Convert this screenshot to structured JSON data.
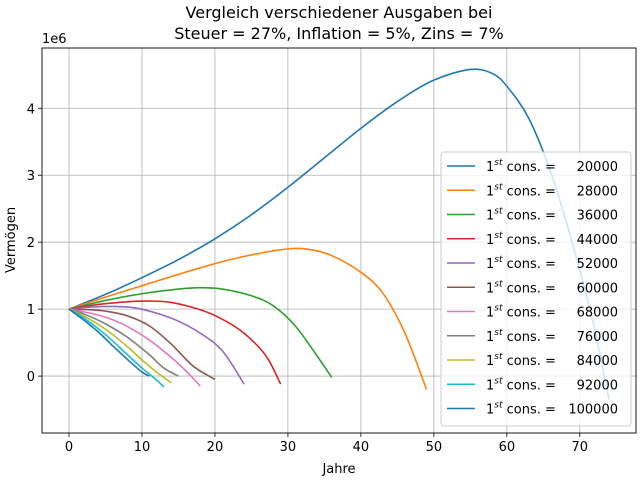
{
  "chart_data": {
    "type": "line",
    "title_line1": "Vergleich verschiedener Ausgaben bei",
    "title_line2": "Steuer = 27%, Inflation = 5%, Zins = 7%",
    "xlabel": "Jahre",
    "ylabel": "Vermögen",
    "y_offset_label": "1e6",
    "xlim": [
      -3.7,
      77.7
    ],
    "ylim": [
      -0.85,
      4.9
    ],
    "y_scale": 1000000,
    "x_ticks": [
      0,
      10,
      20,
      30,
      40,
      50,
      60,
      70
    ],
    "y_ticks": [
      0,
      1,
      2,
      3,
      4
    ],
    "grid": true,
    "legend_position": "right",
    "legend_prefix": "1",
    "legend_sup": "st",
    "legend_suffix": " cons. =",
    "series": [
      {
        "name": "20000",
        "color": "#1f77b4",
        "points": [
          [
            0,
            1.0
          ],
          [
            5,
            1.22
          ],
          [
            10,
            1.47
          ],
          [
            15,
            1.74
          ],
          [
            20,
            2.05
          ],
          [
            25,
            2.41
          ],
          [
            30,
            2.82
          ],
          [
            35,
            3.26
          ],
          [
            40,
            3.7
          ],
          [
            45,
            4.1
          ],
          [
            50,
            4.42
          ],
          [
            55,
            4.58
          ],
          [
            58,
            4.52
          ],
          [
            60,
            4.33
          ],
          [
            63,
            3.85
          ],
          [
            66,
            3.05
          ],
          [
            69,
            1.98
          ],
          [
            72,
            0.72
          ],
          [
            74,
            -0.35
          ]
        ]
      },
      {
        "name": "28000",
        "color": "#ff7f0e",
        "points": [
          [
            0,
            1.0
          ],
          [
            5,
            1.18
          ],
          [
            10,
            1.35
          ],
          [
            15,
            1.52
          ],
          [
            20,
            1.68
          ],
          [
            25,
            1.81
          ],
          [
            30,
            1.9
          ],
          [
            33,
            1.89
          ],
          [
            36,
            1.8
          ],
          [
            40,
            1.55
          ],
          [
            43,
            1.24
          ],
          [
            46,
            0.65
          ],
          [
            49,
            -0.2
          ]
        ]
      },
      {
        "name": "36000",
        "color": "#2ca02c",
        "points": [
          [
            0,
            1.0
          ],
          [
            5,
            1.13
          ],
          [
            10,
            1.23
          ],
          [
            15,
            1.3
          ],
          [
            18,
            1.32
          ],
          [
            21,
            1.3
          ],
          [
            25,
            1.2
          ],
          [
            28,
            1.05
          ],
          [
            31,
            0.75
          ],
          [
            34,
            0.3
          ],
          [
            36,
            -0.02
          ]
        ]
      },
      {
        "name": "44000",
        "color": "#d62728",
        "points": [
          [
            0,
            1.0
          ],
          [
            4,
            1.07
          ],
          [
            8,
            1.11
          ],
          [
            11,
            1.12
          ],
          [
            14,
            1.1
          ],
          [
            18,
            0.99
          ],
          [
            21,
            0.85
          ],
          [
            24,
            0.64
          ],
          [
            27,
            0.3
          ],
          [
            29,
            -0.12
          ]
        ]
      },
      {
        "name": "52000",
        "color": "#9467bd",
        "points": [
          [
            0,
            1.0
          ],
          [
            3,
            1.03
          ],
          [
            6,
            1.04
          ],
          [
            9,
            1.02
          ],
          [
            12,
            0.94
          ],
          [
            15,
            0.82
          ],
          [
            18,
            0.64
          ],
          [
            21,
            0.38
          ],
          [
            24,
            -0.12
          ]
        ]
      },
      {
        "name": "60000",
        "color": "#8c564b",
        "points": [
          [
            0,
            1.0
          ],
          [
            3,
            0.99
          ],
          [
            5,
            0.97
          ],
          [
            8,
            0.9
          ],
          [
            11,
            0.75
          ],
          [
            14,
            0.48
          ],
          [
            17,
            0.15
          ],
          [
            20,
            -0.05
          ]
        ]
      },
      {
        "name": "68000",
        "color": "#e377c2",
        "points": [
          [
            0,
            1.0
          ],
          [
            2,
            0.96
          ],
          [
            5,
            0.88
          ],
          [
            8,
            0.74
          ],
          [
            11,
            0.54
          ],
          [
            14,
            0.28
          ],
          [
            16,
            0.08
          ],
          [
            18,
            -0.15
          ]
        ]
      },
      {
        "name": "76000",
        "color": "#7f7f7f",
        "points": [
          [
            0,
            1.0
          ],
          [
            2,
            0.93
          ],
          [
            5,
            0.78
          ],
          [
            8,
            0.58
          ],
          [
            11,
            0.32
          ],
          [
            13,
            0.12
          ],
          [
            15,
            0.0
          ]
        ]
      },
      {
        "name": "84000",
        "color": "#bcbd22",
        "points": [
          [
            0,
            1.0
          ],
          [
            2,
            0.9
          ],
          [
            5,
            0.7
          ],
          [
            8,
            0.44
          ],
          [
            10,
            0.24
          ],
          [
            12,
            0.06
          ],
          [
            14,
            -0.1
          ]
        ]
      },
      {
        "name": "92000",
        "color": "#17becf",
        "points": [
          [
            0,
            1.0
          ],
          [
            2,
            0.87
          ],
          [
            5,
            0.62
          ],
          [
            8,
            0.32
          ],
          [
            10,
            0.12
          ],
          [
            12,
            -0.06
          ],
          [
            13,
            -0.16
          ]
        ]
      },
      {
        "name": "100000",
        "color": "#1f77b4",
        "points": [
          [
            0,
            1.0
          ],
          [
            2,
            0.84
          ],
          [
            4,
            0.66
          ],
          [
            6,
            0.45
          ],
          [
            8,
            0.25
          ],
          [
            10,
            0.06
          ],
          [
            11,
            0.0
          ]
        ]
      }
    ]
  }
}
